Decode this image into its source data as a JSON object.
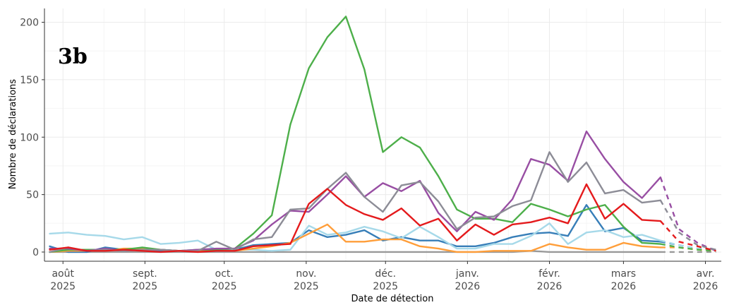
{
  "chart_data": {
    "type": "line",
    "panel_label": "3b",
    "xlabel": "Date de détection",
    "ylabel": "Nombre de déclarations",
    "ylim": [
      -8,
      212
    ],
    "xlim": [
      "2025-07-25",
      "2026-04-07"
    ],
    "yticks": [
      0,
      50,
      100,
      150,
      200
    ],
    "xticks": [
      {
        "date": "2025-08-01",
        "line1": "août",
        "line2": "2025"
      },
      {
        "date": "2025-09-01",
        "line1": "sept.",
        "line2": "2025"
      },
      {
        "date": "2025-10-01",
        "line1": "oct.",
        "line2": "2025"
      },
      {
        "date": "2025-11-01",
        "line1": "nov.",
        "line2": "2025"
      },
      {
        "date": "2025-12-01",
        "line1": "déc.",
        "line2": "2025"
      },
      {
        "date": "2026-01-01",
        "line1": "janv.",
        "line2": "2026"
      },
      {
        "date": "2026-02-01",
        "line1": "févr.",
        "line2": "2026"
      },
      {
        "date": "2026-03-01",
        "line1": "mars",
        "line2": "2026"
      },
      {
        "date": "2026-04-01",
        "line1": "avr.",
        "line2": "2026"
      }
    ],
    "grid": true,
    "legend": "none",
    "x": [
      "2025-07-27",
      "2025-08-03",
      "2025-08-10",
      "2025-08-17",
      "2025-08-24",
      "2025-08-31",
      "2025-09-07",
      "2025-09-14",
      "2025-09-21",
      "2025-09-28",
      "2025-10-05",
      "2025-10-12",
      "2025-10-19",
      "2025-10-26",
      "2025-11-02",
      "2025-11-09",
      "2025-11-16",
      "2025-11-23",
      "2025-11-30",
      "2025-12-07",
      "2025-12-14",
      "2025-12-21",
      "2025-12-28",
      "2026-01-04",
      "2026-01-11",
      "2026-01-18",
      "2026-01-25",
      "2026-02-01",
      "2026-02-08",
      "2026-02-15",
      "2026-02-22",
      "2026-03-01",
      "2026-03-08",
      "2026-03-15",
      "2026-03-22",
      "2026-03-29",
      "2026-04-05"
    ],
    "solid_until_index": 33,
    "series": [
      {
        "color": "#999999",
        "values": [
          0,
          0,
          0,
          0,
          0,
          0,
          0,
          0,
          0,
          0,
          0,
          0,
          0,
          0,
          0,
          0,
          0,
          0,
          0,
          0,
          0,
          0,
          0,
          0,
          0,
          0,
          1,
          0,
          0,
          0,
          0,
          0,
          0,
          0,
          0,
          0,
          0
        ]
      },
      {
        "color": "#377eb8",
        "values": [
          5,
          0,
          0,
          4,
          2,
          2,
          1,
          1,
          1,
          2,
          2,
          6,
          7,
          8,
          19,
          13,
          15,
          19,
          10,
          13,
          10,
          10,
          5,
          5,
          8,
          13,
          16,
          17,
          14,
          41,
          18,
          21,
          10,
          9,
          6,
          3,
          2
        ]
      },
      {
        "color": "#a6d9e9",
        "values": [
          16,
          17,
          15,
          14,
          11,
          13,
          7,
          8,
          10,
          2,
          2,
          2,
          1,
          2,
          23,
          15,
          17,
          22,
          18,
          12,
          22,
          13,
          3,
          3,
          7,
          7,
          14,
          25,
          7,
          17,
          19,
          13,
          15,
          10,
          6,
          3,
          2
        ]
      },
      {
        "color": "#ff9e3a",
        "values": [
          0,
          1,
          1,
          1,
          3,
          3,
          2,
          1,
          1,
          1,
          1,
          3,
          5,
          8,
          16,
          24,
          9,
          9,
          11,
          11,
          5,
          3,
          0,
          0,
          1,
          1,
          1,
          7,
          4,
          2,
          2,
          8,
          5,
          4,
          4,
          2,
          1
        ]
      },
      {
        "color": "#4daf4a",
        "values": [
          0,
          2,
          2,
          2,
          2,
          4,
          2,
          1,
          2,
          2,
          3,
          16,
          32,
          111,
          160,
          187,
          205,
          159,
          87,
          100,
          91,
          66,
          37,
          29,
          29,
          26,
          42,
          37,
          31,
          37,
          41,
          22,
          8,
          7,
          4,
          2,
          1
        ]
      },
      {
        "color": "#984ea3",
        "values": [
          3,
          3,
          1,
          3,
          1,
          2,
          2,
          1,
          2,
          3,
          3,
          10,
          24,
          36,
          35,
          50,
          66,
          48,
          60,
          53,
          62,
          34,
          18,
          35,
          28,
          46,
          81,
          76,
          62,
          105,
          81,
          61,
          47,
          65,
          20,
          8,
          1
        ]
      },
      {
        "color": "#8c8c96",
        "values": [
          0,
          4,
          1,
          2,
          1,
          2,
          2,
          1,
          1,
          9,
          2,
          11,
          13,
          37,
          38,
          55,
          69,
          48,
          35,
          58,
          61,
          44,
          20,
          30,
          31,
          40,
          45,
          87,
          61,
          78,
          51,
          54,
          43,
          45,
          17,
          6,
          2
        ]
      },
      {
        "color": "#e41a1c",
        "values": [
          2,
          4,
          1,
          1,
          2,
          1,
          0,
          1,
          0,
          1,
          1,
          5,
          6,
          7,
          42,
          55,
          41,
          33,
          28,
          38,
          23,
          29,
          10,
          24,
          15,
          24,
          26,
          30,
          25,
          59,
          29,
          42,
          28,
          27,
          9,
          5,
          1
        ]
      }
    ]
  }
}
